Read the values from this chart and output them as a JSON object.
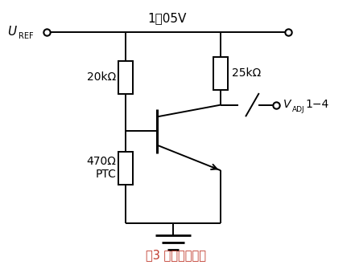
{
  "title": "图3 过热保护电路",
  "title_color": "#c0392b",
  "bg_color": "#ffffff",
  "line_color": "#000000",
  "voltage_label": "1．05V",
  "r1_label": "20kΩ",
  "r2_label": "25kΩ",
  "r3_label_1": "470Ω",
  "r3_label_2": "PTC",
  "vadj_label_rest": "1−4"
}
